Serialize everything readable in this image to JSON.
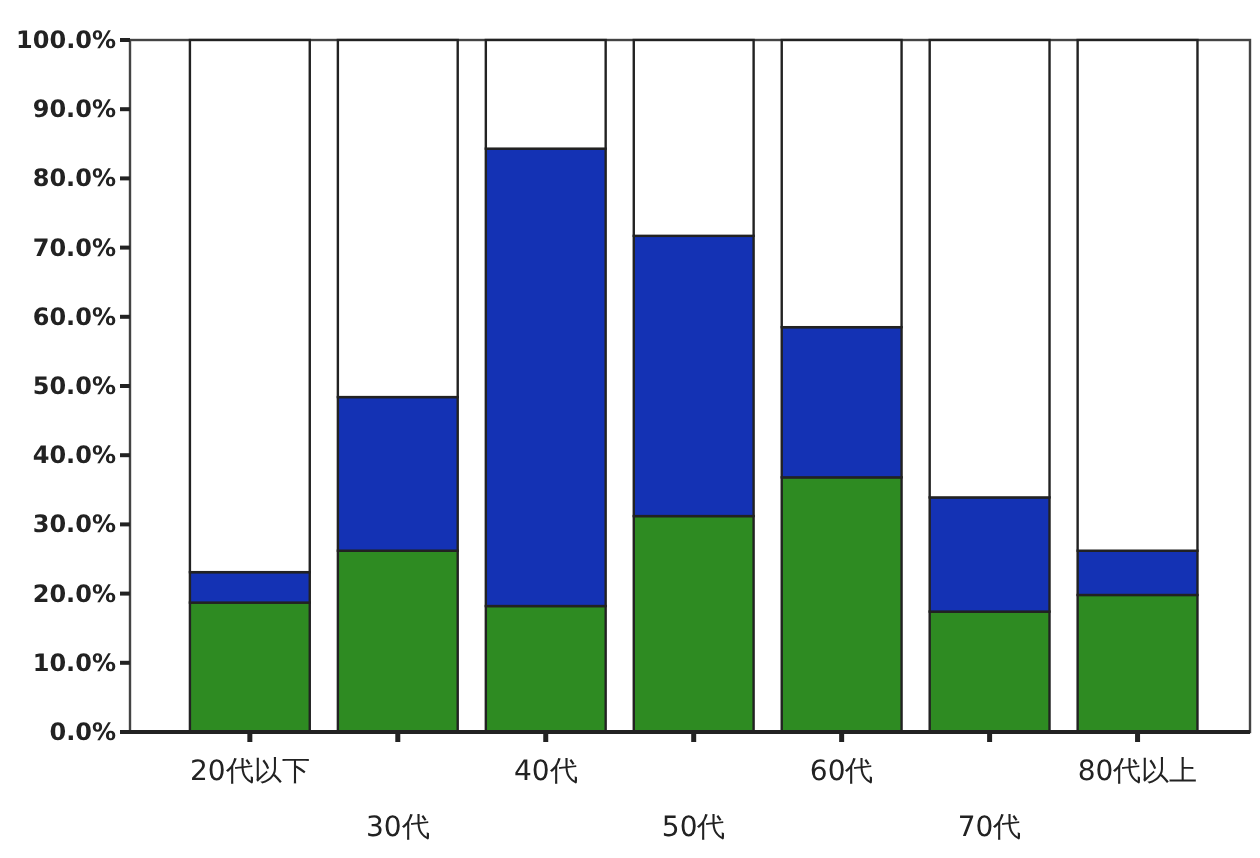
{
  "chart_data": {
    "type": "bar",
    "stacked": true,
    "categories": [
      "20代以下",
      "30代",
      "40代",
      "50代",
      "60代",
      "70代",
      "80代以上"
    ],
    "series": [
      {
        "color": "#2e8b22",
        "values": [
          18.7,
          26.2,
          18.2,
          31.2,
          36.8,
          17.4,
          19.8
        ]
      },
      {
        "color": "#1432b4",
        "values": [
          4.4,
          22.2,
          66.1,
          40.5,
          21.7,
          16.5,
          6.4
        ]
      },
      {
        "color": "#ffffff",
        "values": [
          76.9,
          51.6,
          15.7,
          28.3,
          41.5,
          66.1,
          73.8
        ]
      }
    ],
    "ylim": [
      0,
      100
    ],
    "yticks": [
      {
        "value": 0,
        "label": "0.0%"
      },
      {
        "value": 10,
        "label": "10.0%"
      },
      {
        "value": 20,
        "label": "20.0%"
      },
      {
        "value": 30,
        "label": "30.0%"
      },
      {
        "value": 40,
        "label": "40.0%"
      },
      {
        "value": 50,
        "label": "50.0%"
      },
      {
        "value": 60,
        "label": "60.0%"
      },
      {
        "value": 70,
        "label": "70.0%"
      },
      {
        "value": 80,
        "label": "80.0%"
      },
      {
        "value": 90,
        "label": "90.0%"
      },
      {
        "value": 100,
        "label": "100.0%"
      }
    ],
    "grid": false
  }
}
